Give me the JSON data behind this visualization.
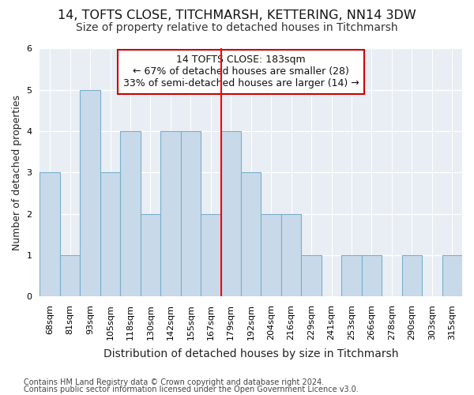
{
  "title": "14, TOFTS CLOSE, TITCHMARSH, KETTERING, NN14 3DW",
  "subtitle": "Size of property relative to detached houses in Titchmarsh",
  "xlabel": "Distribution of detached houses by size in Titchmarsh",
  "ylabel": "Number of detached properties",
  "footnote1": "Contains HM Land Registry data © Crown copyright and database right 2024.",
  "footnote2": "Contains public sector information licensed under the Open Government Licence v3.0.",
  "categories": [
    "68sqm",
    "81sqm",
    "93sqm",
    "105sqm",
    "118sqm",
    "130sqm",
    "142sqm",
    "155sqm",
    "167sqm",
    "179sqm",
    "192sqm",
    "204sqm",
    "216sqm",
    "229sqm",
    "241sqm",
    "253sqm",
    "266sqm",
    "278sqm",
    "290sqm",
    "303sqm",
    "315sqm"
  ],
  "values": [
    3,
    1,
    5,
    3,
    4,
    2,
    4,
    4,
    2,
    4,
    3,
    2,
    2,
    1,
    0,
    1,
    1,
    0,
    1,
    0,
    1
  ],
  "bar_color": "#c8daea",
  "bar_edge_color": "#7aaecc",
  "red_line_index": 9,
  "annotation_title": "14 TOFTS CLOSE: 183sqm",
  "annotation_line1": "← 67% of detached houses are smaller (28)",
  "annotation_line2": "33% of semi-detached houses are larger (14) →",
  "annotation_box_color": "#ffffff",
  "annotation_box_edge": "#cc0000",
  "ylim": [
    0,
    6
  ],
  "background_color": "#ffffff",
  "plot_bg_color": "#e8eef4",
  "grid_color": "#ffffff",
  "title_fontsize": 11.5,
  "subtitle_fontsize": 10,
  "xlabel_fontsize": 10,
  "ylabel_fontsize": 9,
  "tick_fontsize": 8,
  "annotation_fontsize": 9,
  "footnote_fontsize": 7
}
